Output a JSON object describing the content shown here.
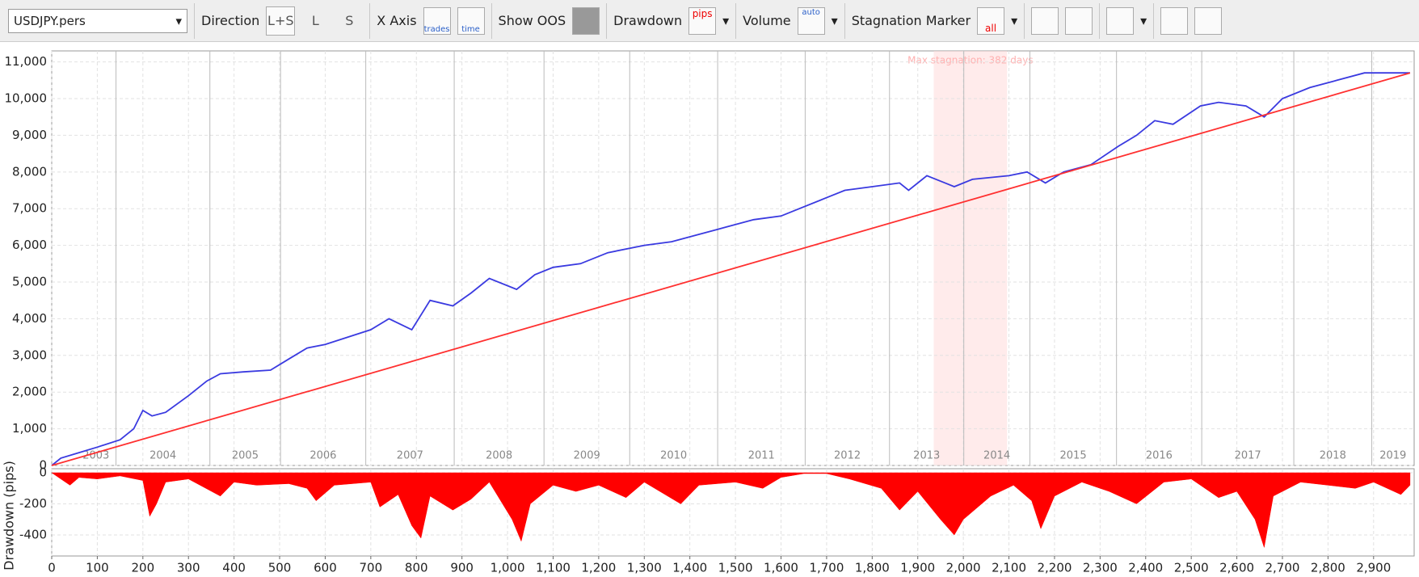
{
  "toolbar": {
    "symbol": "USDJPY.pers",
    "direction": "Direction",
    "direction_options": [
      "L+S",
      "L",
      "S"
    ],
    "x_axis": "X Axis",
    "x_axis_options": [
      "trades",
      "time"
    ],
    "show_oos": "Show OOS",
    "drawdown": "Drawdown",
    "drawdown_icon": "pips",
    "volume": "Volume",
    "volume_icon": "auto",
    "stagnation_marker": "Stagnation Marker",
    "stagnation_icon": "all"
  },
  "chart_data": [
    {
      "type": "line",
      "xlim": [
        0,
        2989
      ],
      "ylim": [
        0,
        11300
      ],
      "yticks": [
        0,
        {
          "value": 1000,
          "label": "1,000"
        },
        {
          "value": 2000,
          "label": "2,000"
        },
        {
          "value": 3000,
          "label": "3,000"
        },
        {
          "value": 4000,
          "label": "4,000"
        },
        {
          "value": 5000,
          "label": "5,000"
        },
        {
          "value": 6000,
          "label": "6,000"
        },
        {
          "value": 7000,
          "label": "7,000"
        },
        {
          "value": 8000,
          "label": "8,000"
        },
        {
          "value": 9000,
          "label": "9,000"
        },
        {
          "value": 10000,
          "label": "10,000"
        },
        {
          "value": 11000,
          "label": "11,000"
        }
      ],
      "grid": true,
      "years": [
        "2003",
        "2004",
        "2005",
        "2006",
        "2007",
        "2008",
        "2009",
        "2010",
        "2011",
        "2012",
        "2013",
        "2014",
        "2015",
        "2016",
        "2017",
        "2018",
        "2019"
      ],
      "year_boundaries": [
        141,
        347,
        502,
        689,
        883,
        1080,
        1268,
        1461,
        1653,
        1838,
        2001,
        2146,
        2336,
        2523,
        2725,
        2896
      ],
      "stagnation": {
        "start": 1935,
        "end": 2096,
        "label": "Max stagnation: 382 days"
      },
      "series": [
        {
          "color": "#3a3ae0",
          "x": [
            0,
            20,
            60,
            100,
            150,
            180,
            200,
            220,
            250,
            300,
            340,
            370,
            420,
            480,
            520,
            560,
            600,
            650,
            700,
            740,
            790,
            830,
            880,
            920,
            960,
            1020,
            1060,
            1100,
            1160,
            1220,
            1300,
            1360,
            1420,
            1480,
            1540,
            1600,
            1700,
            1740,
            1800,
            1860,
            1880,
            1920,
            1960,
            1980,
            2020,
            2100,
            2140,
            2180,
            2220,
            2280,
            2340,
            2380,
            2420,
            2460,
            2520,
            2560,
            2620,
            2660,
            2700,
            2760,
            2820,
            2880,
            2940,
            2980
          ],
          "values": [
            0,
            200,
            350,
            500,
            700,
            1000,
            1500,
            1350,
            1450,
            1900,
            2300,
            2500,
            2550,
            2600,
            2900,
            3200,
            3300,
            3500,
            3700,
            4000,
            3700,
            4500,
            4350,
            4700,
            5100,
            4800,
            5200,
            5400,
            5500,
            5800,
            6000,
            6100,
            6300,
            6500,
            6700,
            6800,
            7300,
            7500,
            7600,
            7700,
            7500,
            7900,
            7700,
            7600,
            7800,
            7900,
            8000,
            7700,
            8000,
            8200,
            8700,
            9000,
            9400,
            9300,
            9800,
            9900,
            9800,
            9500,
            10000,
            10300,
            10500,
            10700,
            10700,
            10700
          ]
        },
        {
          "color": "#ff3030",
          "x": [
            0,
            2980
          ],
          "values": [
            0,
            10700
          ]
        }
      ]
    },
    {
      "type": "area",
      "ylabel": "Drawdown (pips)",
      "xlim": [
        0,
        2989
      ],
      "ylim": [
        -535,
        26
      ],
      "xticks": [
        0,
        100,
        200,
        300,
        400,
        500,
        600,
        700,
        800,
        900,
        {
          "value": 1000,
          "label": "1,000"
        },
        {
          "value": 1100,
          "label": "1,100"
        },
        {
          "value": 1200,
          "label": "1,200"
        },
        {
          "value": 1300,
          "label": "1,300"
        },
        {
          "value": 1400,
          "label": "1,400"
        },
        {
          "value": 1500,
          "label": "1,500"
        },
        {
          "value": 1600,
          "label": "1,600"
        },
        {
          "value": 1700,
          "label": "1,700"
        },
        {
          "value": 1800,
          "label": "1,800"
        },
        {
          "value": 1900,
          "label": "1,900"
        },
        {
          "value": 2000,
          "label": "2,000"
        },
        {
          "value": 2100,
          "label": "2,100"
        },
        {
          "value": 2200,
          "label": "2,200"
        },
        {
          "value": 2300,
          "label": "2,300"
        },
        {
          "value": 2400,
          "label": "2,400"
        },
        {
          "value": 2500,
          "label": "2,500"
        },
        {
          "value": 2600,
          "label": "2,600"
        },
        {
          "value": 2700,
          "label": "2,700"
        },
        {
          "value": 2800,
          "label": "2,800"
        },
        {
          "value": 2900,
          "label": "2,900"
        }
      ],
      "yticks": [
        0,
        -200,
        -400
      ],
      "grid": true,
      "color": "#ff0000",
      "x": [
        0,
        20,
        40,
        60,
        100,
        150,
        200,
        215,
        230,
        250,
        300,
        370,
        400,
        450,
        520,
        560,
        580,
        620,
        700,
        720,
        760,
        790,
        810,
        830,
        880,
        920,
        960,
        1010,
        1030,
        1050,
        1100,
        1150,
        1200,
        1260,
        1300,
        1380,
        1420,
        1500,
        1560,
        1600,
        1650,
        1700,
        1750,
        1820,
        1860,
        1900,
        1950,
        1980,
        2000,
        2060,
        2110,
        2150,
        2170,
        2200,
        2260,
        2320,
        2380,
        2440,
        2500,
        2560,
        2600,
        2640,
        2660,
        2680,
        2740,
        2800,
        2860,
        2900,
        2960,
        2980
      ],
      "values": [
        0,
        -40,
        -80,
        -30,
        -40,
        -20,
        -50,
        -280,
        -200,
        -60,
        -40,
        -150,
        -60,
        -80,
        -70,
        -100,
        -180,
        -80,
        -60,
        -220,
        -140,
        -340,
        -420,
        -150,
        -240,
        -170,
        -60,
        -300,
        -440,
        -200,
        -80,
        -120,
        -80,
        -160,
        -60,
        -200,
        -80,
        -60,
        -100,
        -30,
        -5,
        -5,
        -40,
        -100,
        -240,
        -120,
        -300,
        -400,
        -300,
        -150,
        -80,
        -180,
        -360,
        -150,
        -60,
        -120,
        -200,
        -60,
        -40,
        -160,
        -120,
        -300,
        -480,
        -150,
        -60,
        -80,
        -100,
        -60,
        -140,
        -80
      ]
    }
  ]
}
